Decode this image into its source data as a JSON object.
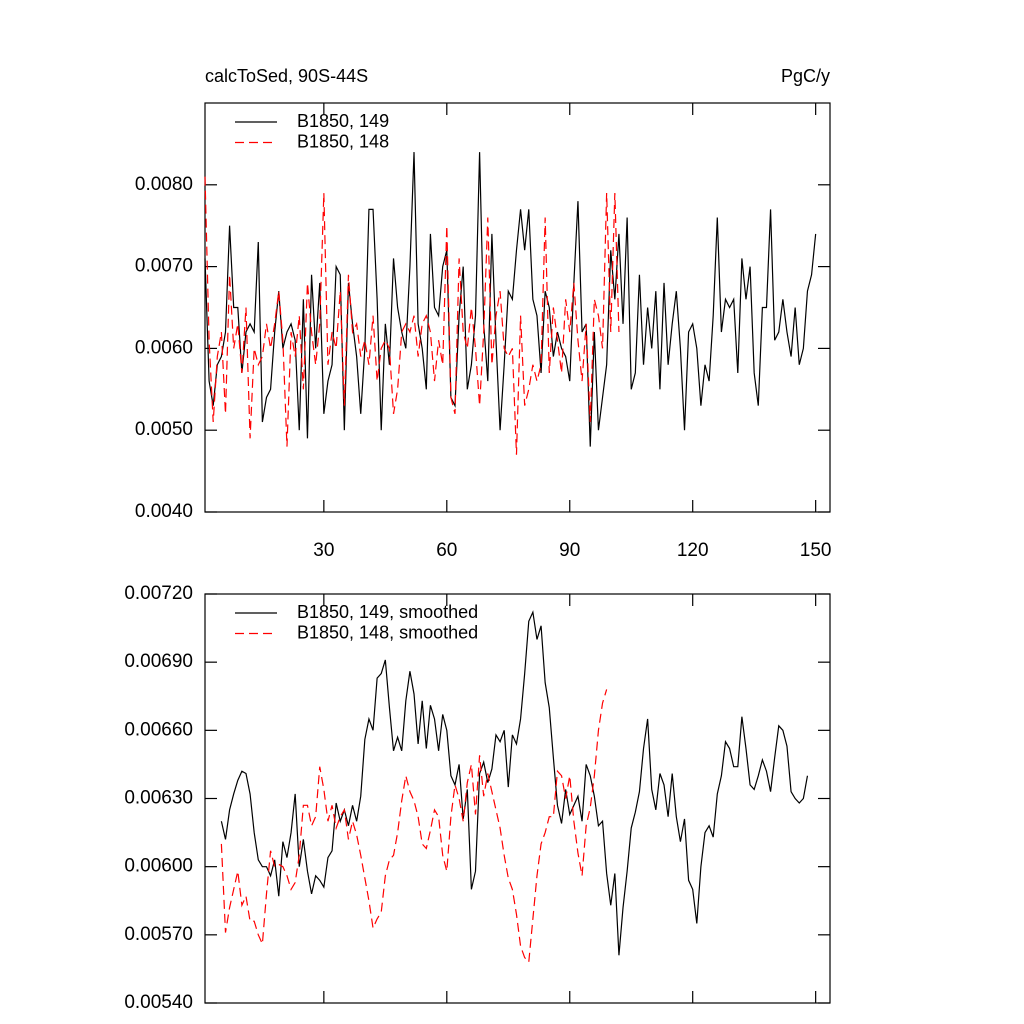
{
  "chart_data": [
    {
      "type": "line",
      "title": "calcToSed, 90S-44S",
      "units": "PgC/y",
      "x": [
        1,
        2,
        3,
        4,
        5,
        6,
        7,
        8,
        9,
        10,
        11,
        12,
        13,
        14,
        15,
        16,
        17,
        18,
        19,
        20,
        21,
        22,
        23,
        24,
        25,
        26,
        27,
        28,
        29,
        30,
        31,
        32,
        33,
        34,
        35,
        36,
        37,
        38,
        39,
        40,
        41,
        42,
        43,
        44,
        45,
        46,
        47,
        48,
        49,
        50,
        51,
        52,
        53,
        54,
        55,
        56,
        57,
        58,
        59,
        60,
        61,
        62,
        63,
        64,
        65,
        66,
        67,
        68,
        69,
        70,
        71,
        72,
        73,
        74,
        75,
        76,
        77,
        78,
        79,
        80,
        81,
        82,
        83,
        84,
        85,
        86,
        87,
        88,
        89,
        90,
        91,
        92,
        93,
        94,
        95,
        96,
        97,
        98,
        99,
        100,
        101,
        102,
        103,
        104,
        105,
        106,
        107,
        108,
        109,
        110,
        111,
        112,
        113,
        114,
        115,
        116,
        117,
        118,
        119,
        120,
        121,
        122,
        123,
        124,
        125,
        126,
        127,
        128,
        129,
        130,
        131,
        132,
        133,
        134,
        135,
        136,
        137,
        138,
        139,
        140,
        141,
        142,
        143,
        144,
        145,
        146,
        147,
        148,
        149,
        150
      ],
      "series": [
        {
          "name": "B1850, 149",
          "color": "#000000",
          "linestyle": "solid",
          "values": [
            0.0071,
            0.0056,
            0.0053,
            0.0058,
            0.0059,
            0.0062,
            0.0075,
            0.0065,
            0.0065,
            0.0057,
            0.0062,
            0.0063,
            0.0062,
            0.0073,
            0.0051,
            0.0054,
            0.0055,
            0.0062,
            0.0067,
            0.006,
            0.0062,
            0.0063,
            0.0061,
            0.005,
            0.0066,
            0.0049,
            0.0069,
            0.006,
            0.0068,
            0.0052,
            0.0056,
            0.0058,
            0.007,
            0.0069,
            0.005,
            0.0068,
            0.0063,
            0.0059,
            0.0052,
            0.006,
            0.0077,
            0.0077,
            0.0066,
            0.005,
            0.0063,
            0.0058,
            0.0071,
            0.0065,
            0.0062,
            0.006,
            0.007,
            0.0084,
            0.0063,
            0.006,
            0.0055,
            0.0074,
            0.0065,
            0.0064,
            0.007,
            0.0072,
            0.0054,
            0.0053,
            0.0064,
            0.007,
            0.0055,
            0.0058,
            0.0064,
            0.0084,
            0.0063,
            0.0056,
            0.0074,
            0.0061,
            0.005,
            0.0058,
            0.0067,
            0.0066,
            0.0072,
            0.0077,
            0.0072,
            0.0077,
            0.0066,
            0.0064,
            0.0057,
            0.0067,
            0.0065,
            0.0059,
            0.0062,
            0.006,
            0.0059,
            0.0056,
            0.0068,
            0.0078,
            0.0062,
            0.0063,
            0.0048,
            0.0062,
            0.005,
            0.0054,
            0.0058,
            0.0072,
            0.0066,
            0.0074,
            0.0063,
            0.0076,
            0.0055,
            0.0057,
            0.0069,
            0.0058,
            0.0065,
            0.006,
            0.0067,
            0.0055,
            0.0068,
            0.0058,
            0.0063,
            0.0067,
            0.006,
            0.005,
            0.0062,
            0.0063,
            0.006,
            0.0053,
            0.0058,
            0.0056,
            0.0064,
            0.0076,
            0.0062,
            0.0066,
            0.0065,
            0.0066,
            0.0057,
            0.0071,
            0.0066,
            0.007,
            0.0057,
            0.0053,
            0.0065,
            0.0065,
            0.0077,
            0.0061,
            0.0062,
            0.0066,
            0.0062,
            0.0059,
            0.0065,
            0.0058,
            0.006,
            0.0067,
            0.0069,
            0.0074
          ]
        },
        {
          "name": "B1850, 148",
          "color": "#ff0000",
          "linestyle": "dashed",
          "values": [
            0.0081,
            0.0061,
            0.0051,
            0.0059,
            0.0062,
            0.0052,
            0.0069,
            0.006,
            0.0063,
            0.0057,
            0.0065,
            0.0049,
            0.006,
            0.0058,
            0.0059,
            0.0063,
            0.006,
            0.0063,
            0.0067,
            0.0061,
            0.0048,
            0.0062,
            0.0059,
            0.0064,
            0.0055,
            0.0068,
            0.0062,
            0.0058,
            0.0063,
            0.0079,
            0.0058,
            0.0062,
            0.006,
            0.0067,
            0.0053,
            0.0069,
            0.0062,
            0.0063,
            0.0059,
            0.0061,
            0.0058,
            0.0064,
            0.0056,
            0.006,
            0.0061,
            0.006,
            0.0052,
            0.0055,
            0.0062,
            0.0063,
            0.0062,
            0.0064,
            0.0059,
            0.0063,
            0.0064,
            0.0062,
            0.0056,
            0.0061,
            0.0058,
            0.0075,
            0.0054,
            0.0052,
            0.0071,
            0.0062,
            0.006,
            0.0065,
            0.006,
            0.0053,
            0.0062,
            0.0076,
            0.0058,
            0.0064,
            0.0067,
            0.006,
            0.0059,
            0.006,
            0.0047,
            0.0064,
            0.0053,
            0.0055,
            0.0058,
            0.0056,
            0.0058,
            0.0076,
            0.0057,
            0.0065,
            0.0061,
            0.0057,
            0.0066,
            0.0062,
            0.0068,
            0.0061,
            0.0056,
            0.0063,
            0.0051,
            0.0066,
            0.0064,
            0.006,
            0.0079,
            0.0062,
            0.0079,
            0.0062,
            null,
            null,
            null,
            null,
            null,
            null,
            null,
            null,
            null,
            null,
            null,
            null,
            null,
            null,
            null,
            null,
            null,
            null,
            null,
            null,
            null,
            null,
            null,
            null,
            null,
            null,
            null,
            null,
            null,
            null,
            null,
            null,
            null,
            null,
            null,
            null,
            null,
            null,
            null,
            null,
            null,
            null,
            null,
            null,
            null,
            null,
            null,
            null
          ]
        }
      ],
      "xlim": [
        1,
        153.5
      ],
      "xticks": [
        30,
        60,
        90,
        120,
        150
      ],
      "show_xtick_labels": true,
      "ylim": [
        0.004,
        0.009
      ],
      "yticks": [
        {
          "value": 0.004,
          "label": "0.0040"
        },
        {
          "value": 0.005,
          "label": "0.0050"
        },
        {
          "value": 0.006,
          "label": "0.0060"
        },
        {
          "value": 0.007,
          "label": "0.0070"
        },
        {
          "value": 0.008,
          "label": "0.0080"
        }
      ],
      "legend": "upper left",
      "grid": false
    },
    {
      "type": "line",
      "x": [
        1,
        2,
        3,
        4,
        5,
        6,
        7,
        8,
        9,
        10,
        11,
        12,
        13,
        14,
        15,
        16,
        17,
        18,
        19,
        20,
        21,
        22,
        23,
        24,
        25,
        26,
        27,
        28,
        29,
        30,
        31,
        32,
        33,
        34,
        35,
        36,
        37,
        38,
        39,
        40,
        41,
        42,
        43,
        44,
        45,
        46,
        47,
        48,
        49,
        50,
        51,
        52,
        53,
        54,
        55,
        56,
        57,
        58,
        59,
        60,
        61,
        62,
        63,
        64,
        65,
        66,
        67,
        68,
        69,
        70,
        71,
        72,
        73,
        74,
        75,
        76,
        77,
        78,
        79,
        80,
        81,
        82,
        83,
        84,
        85,
        86,
        87,
        88,
        89,
        90,
        91,
        92,
        93,
        94,
        95,
        96,
        97,
        98,
        99,
        100,
        101,
        102,
        103,
        104,
        105,
        106,
        107,
        108,
        109,
        110,
        111,
        112,
        113,
        114,
        115,
        116,
        117,
        118,
        119,
        120,
        121,
        122,
        123,
        124,
        125,
        126,
        127,
        128,
        129,
        130,
        131,
        132,
        133,
        134,
        135,
        136,
        137,
        138,
        139,
        140,
        141,
        142,
        143,
        144,
        145,
        146,
        147,
        148,
        149,
        150
      ],
      "series": [
        {
          "name": "B1850, 149, smoothed",
          "color": "#000000",
          "linestyle": "solid",
          "values": [
            null,
            null,
            null,
            null,
            0.0062,
            0.00612,
            0.00625,
            0.00632,
            0.00638,
            0.00642,
            0.00641,
            0.00632,
            0.00615,
            0.00603,
            0.006,
            0.006,
            0.00596,
            0.00603,
            0.00587,
            0.00611,
            0.00604,
            0.00615,
            0.00632,
            0.006,
            0.00612,
            0.00598,
            0.00588,
            0.00596,
            0.00594,
            0.00591,
            0.00604,
            0.00607,
            0.00628,
            0.0062,
            0.00625,
            0.00618,
            0.00627,
            0.0062,
            0.00631,
            0.00656,
            0.00665,
            0.0066,
            0.00683,
            0.00685,
            0.00691,
            0.0067,
            0.00651,
            0.00657,
            0.00651,
            0.00673,
            0.00686,
            0.00676,
            0.00654,
            0.00673,
            0.00652,
            0.00671,
            0.00665,
            0.00651,
            0.00667,
            0.0066,
            0.0064,
            0.00636,
            0.00645,
            0.00621,
            0.00634,
            0.0059,
            0.00598,
            0.00641,
            0.00646,
            0.00637,
            0.00643,
            0.00658,
            0.00655,
            0.0066,
            0.00635,
            0.00658,
            0.00654,
            0.00665,
            0.00685,
            0.00708,
            0.00712,
            0.007,
            0.00706,
            0.00681,
            0.0067,
            0.00648,
            0.00627,
            0.00619,
            0.00634,
            0.00623,
            0.00627,
            0.00631,
            0.0062,
            0.00645,
            0.0064,
            0.00631,
            0.00618,
            0.0062,
            0.00597,
            0.00583,
            0.00597,
            0.00561,
            0.00582,
            0.00598,
            0.00617,
            0.00624,
            0.00633,
            0.00652,
            0.00665,
            0.00634,
            0.00625,
            0.00641,
            0.00636,
            0.00622,
            0.00641,
            0.00622,
            0.00611,
            0.00621,
            0.00594,
            0.0059,
            0.00575,
            0.006,
            0.00615,
            0.00618,
            0.00613,
            0.00632,
            0.0064,
            0.00655,
            0.00652,
            0.00644,
            0.00644,
            0.00666,
            0.00652,
            0.00636,
            0.00634,
            0.0064,
            0.00647,
            0.00642,
            0.00633,
            0.00648,
            0.00662,
            0.0066,
            0.00653,
            0.00633,
            0.0063,
            0.00628,
            0.0063,
            0.0064,
            null,
            null
          ]
        },
        {
          "name": "B1850, 148, smoothed",
          "color": "#ff0000",
          "linestyle": "dashed",
          "values": [
            null,
            null,
            null,
            null,
            0.0061,
            0.00571,
            0.00582,
            0.0059,
            0.00598,
            0.00583,
            0.00587,
            0.00576,
            0.00576,
            0.0057,
            0.00566,
            0.00588,
            0.00607,
            0.006,
            0.00601,
            0.006,
            0.00596,
            0.0059,
            0.00593,
            0.00605,
            0.00627,
            0.00627,
            0.00618,
            0.00622,
            0.00644,
            0.00634,
            0.0062,
            0.00627,
            0.00617,
            0.00622,
            0.00625,
            0.00612,
            0.0062,
            0.00614,
            0.00605,
            0.00595,
            0.00585,
            0.00573,
            0.00577,
            0.0058,
            0.00596,
            0.00603,
            0.00605,
            0.00615,
            0.00629,
            0.0064,
            0.00633,
            0.00629,
            0.00622,
            0.0061,
            0.00608,
            0.00616,
            0.00625,
            0.00622,
            0.00605,
            0.00598,
            0.00622,
            0.00636,
            0.0063,
            0.0062,
            0.00637,
            0.00645,
            0.00623,
            0.00649,
            0.00631,
            0.00641,
            0.00633,
            0.00625,
            0.00617,
            0.00605,
            0.00595,
            0.0059,
            0.00579,
            0.00565,
            0.0056,
            0.00558,
            0.00577,
            0.00596,
            0.0061,
            0.00615,
            0.00622,
            0.00622,
            0.00642,
            0.0064,
            0.0063,
            0.0064,
            0.0062,
            0.00606,
            0.00596,
            0.00618,
            0.00626,
            0.0064,
            0.0066,
            0.00672,
            0.00678,
            null,
            null,
            null,
            null,
            null,
            null,
            null,
            null,
            null,
            null,
            null,
            null,
            null,
            null,
            null,
            null,
            null,
            null,
            null,
            null,
            null,
            null,
            null,
            null,
            null,
            null,
            null,
            null,
            null,
            null,
            null,
            null,
            null,
            null,
            null,
            null,
            null,
            null,
            null,
            null,
            null,
            null,
            null,
            null,
            null,
            null,
            null,
            null,
            null,
            null,
            null
          ]
        }
      ],
      "xlim": [
        1,
        153.5
      ],
      "xticks": [
        30,
        60,
        90,
        120,
        150
      ],
      "show_xtick_labels": false,
      "ylim": [
        0.0054,
        0.0072
      ],
      "yticks": [
        {
          "value": 0.0054,
          "label": "0.00540"
        },
        {
          "value": 0.0057,
          "label": "0.00570"
        },
        {
          "value": 0.006,
          "label": "0.00600"
        },
        {
          "value": 0.0063,
          "label": "0.00630"
        },
        {
          "value": 0.0066,
          "label": "0.00660"
        },
        {
          "value": 0.0069,
          "label": "0.00690"
        },
        {
          "value": 0.0072,
          "label": "0.00720"
        }
      ],
      "legend": "upper left",
      "grid": false
    }
  ]
}
